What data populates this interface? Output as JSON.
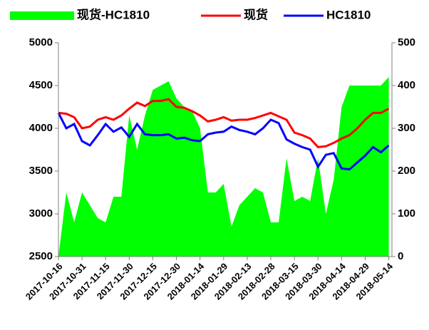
{
  "chart_data": {
    "type": "line",
    "x": [
      "2017-10-16",
      "2017-10-21",
      "2017-10-26",
      "2017-10-31",
      "2017-11-05",
      "2017-11-10",
      "2017-11-15",
      "2017-11-20",
      "2017-11-25",
      "2017-11-30",
      "2017-12-05",
      "2017-12-10",
      "2017-12-15",
      "2017-12-20",
      "2017-12-25",
      "2017-12-30",
      "2018-01-04",
      "2018-01-09",
      "2018-01-14",
      "2018-01-19",
      "2018-01-24",
      "2018-01-29",
      "2018-02-03",
      "2018-02-08",
      "2018-02-13",
      "2018-02-18",
      "2018-02-23",
      "2018-02-28",
      "2018-03-05",
      "2018-03-10",
      "2018-03-15",
      "2018-03-20",
      "2018-03-25",
      "2018-03-30",
      "2018-04-04",
      "2018-04-09",
      "2018-04-14",
      "2018-04-19",
      "2018-04-24",
      "2018-04-29",
      "2018-05-04",
      "2018-05-09",
      "2018-05-14"
    ],
    "series": [
      {
        "name": "现货-HC1810",
        "color": "#00ff00",
        "kind": "area",
        "axis": "y2",
        "values": [
          0,
          150,
          80,
          150,
          120,
          90,
          80,
          140,
          140,
          330,
          250,
          330,
          390,
          400,
          410,
          370,
          350,
          340,
          300,
          150,
          150,
          170,
          70,
          120,
          140,
          160,
          150,
          80,
          80,
          230,
          130,
          140,
          130,
          230,
          100,
          180,
          350,
          400,
          400,
          400,
          400,
          400,
          420
        ]
      },
      {
        "name": "现货",
        "color": "#ff0000",
        "kind": "line",
        "values": [
          4180,
          4170,
          4130,
          4000,
          4020,
          4100,
          4130,
          4100,
          4150,
          4230,
          4300,
          4260,
          4320,
          4320,
          4340,
          4250,
          4240,
          4200,
          4150,
          4080,
          4100,
          4130,
          4090,
          4100,
          4100,
          4120,
          4150,
          4180,
          4140,
          4100,
          3950,
          3920,
          3880,
          3780,
          3790,
          3830,
          3880,
          3920,
          4000,
          4100,
          4180,
          4180,
          4230
        ]
      },
      {
        "name": "HC1810",
        "color": "#0000ff",
        "kind": "line",
        "values": [
          4180,
          4000,
          4050,
          3850,
          3800,
          3920,
          4050,
          3960,
          4010,
          3900,
          4050,
          3930,
          3920,
          3920,
          3930,
          3880,
          3890,
          3860,
          3850,
          3930,
          3950,
          3960,
          4020,
          3980,
          3960,
          3930,
          4000,
          4100,
          4060,
          3870,
          3820,
          3780,
          3750,
          3550,
          3690,
          3710,
          3530,
          3520,
          3600,
          3680,
          3780,
          3720,
          3800
        ]
      }
    ],
    "xlim": [
      "2017-10-16",
      "2018-05-16"
    ],
    "xticks": [
      "2017-10-16",
      "2017-10-31",
      "2017-11-15",
      "2017-11-30",
      "2017-12-15",
      "2017-12-30",
      "2018-01-14",
      "2018-01-29",
      "2018-02-13",
      "2018-02-28",
      "2018-03-15",
      "2018-03-30",
      "2018-04-14",
      "2018-04-29",
      "2018-05-14"
    ],
    "ylim": [
      2500,
      5000
    ],
    "yticks": [
      2500,
      3000,
      3500,
      4000,
      4500,
      5000
    ],
    "y2lim": [
      0,
      500
    ],
    "y2ticks": [
      0,
      100,
      200,
      300,
      400,
      500
    ],
    "grid": false,
    "legend": "top"
  }
}
